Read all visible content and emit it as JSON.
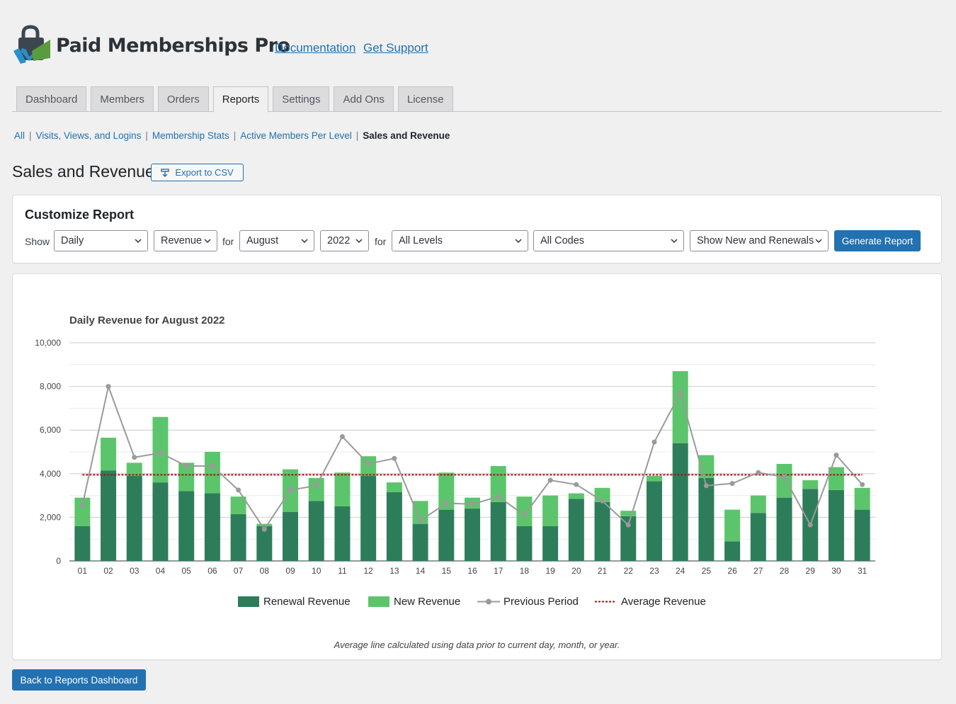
{
  "header": {
    "brand": "Paid Memberships Pro",
    "links": [
      "Documentation",
      "Get Support"
    ]
  },
  "tabs": [
    {
      "label": "Dashboard",
      "active": false
    },
    {
      "label": "Members",
      "active": false
    },
    {
      "label": "Orders",
      "active": false
    },
    {
      "label": "Reports",
      "active": true
    },
    {
      "label": "Settings",
      "active": false
    },
    {
      "label": "Add Ons",
      "active": false
    },
    {
      "label": "License",
      "active": false
    }
  ],
  "subnav": {
    "items": [
      "All",
      "Visits, Views, and Logins",
      "Membership Stats",
      "Active Members Per Level"
    ],
    "current": "Sales and Revenue"
  },
  "page": {
    "title": "Sales and Revenue",
    "export_label": "Export to CSV"
  },
  "customize": {
    "heading": "Customize Report",
    "show_label": "Show",
    "for_label_1": "for",
    "for_label_2": "for",
    "period": "Daily",
    "type": "Revenue",
    "month": "August",
    "year": "2022",
    "level": "All Levels",
    "codes": "All Codes",
    "filter": "Show New and Renewals",
    "generate_label": "Generate Report"
  },
  "footnote": "Average line calculated using data prior to current day, month, or year.",
  "back_label": "Back to Reports Dashboard",
  "colors": {
    "renewal": "#2e7d5a",
    "new": "#5cc56c",
    "previous": "#9a9a9a",
    "average": "#a01010",
    "primary": "#2271b1"
  },
  "chart_data": {
    "type": "bar",
    "title": "Daily Revenue for August 2022",
    "stacked": true,
    "categories": [
      "01",
      "02",
      "03",
      "04",
      "05",
      "06",
      "07",
      "08",
      "09",
      "10",
      "11",
      "12",
      "13",
      "14",
      "15",
      "16",
      "17",
      "18",
      "19",
      "20",
      "21",
      "22",
      "23",
      "24",
      "25",
      "26",
      "27",
      "28",
      "29",
      "30",
      "31"
    ],
    "series": [
      {
        "name": "Renewal Revenue",
        "type": "bar",
        "values": [
          1600,
          4150,
          3900,
          3600,
          3200,
          3100,
          2150,
          1600,
          2250,
          2750,
          2500,
          3900,
          3150,
          1700,
          2350,
          2400,
          2700,
          1600,
          1600,
          2850,
          2700,
          2050,
          3650,
          5400,
          3800,
          900,
          2200,
          2900,
          3300,
          3250,
          2350
        ]
      },
      {
        "name": "New Revenue",
        "type": "bar",
        "values": [
          1300,
          1500,
          600,
          3000,
          1300,
          1900,
          800,
          100,
          1950,
          1050,
          1550,
          900,
          450,
          1050,
          1700,
          500,
          1650,
          1350,
          1400,
          250,
          650,
          250,
          250,
          3300,
          1050,
          1450,
          800,
          1550,
          400,
          1050,
          1000
        ]
      },
      {
        "name": "Previous Period",
        "type": "line",
        "values": [
          2550,
          8000,
          4750,
          4950,
          4350,
          4350,
          3250,
          1450,
          3250,
          3450,
          5700,
          4450,
          4700,
          1850,
          2650,
          2600,
          2950,
          2100,
          3700,
          3500,
          2750,
          1650,
          5450,
          7700,
          3450,
          3550,
          4050,
          3850,
          1650,
          4850,
          3500
        ]
      },
      {
        "name": "Average Revenue",
        "type": "line",
        "value": 3950
      }
    ],
    "ylim": [
      0,
      10000
    ],
    "yticks": [
      "0",
      "2,000",
      "4,000",
      "6,000",
      "8,000",
      "10,000"
    ],
    "grid": true,
    "legend": "bottom"
  }
}
